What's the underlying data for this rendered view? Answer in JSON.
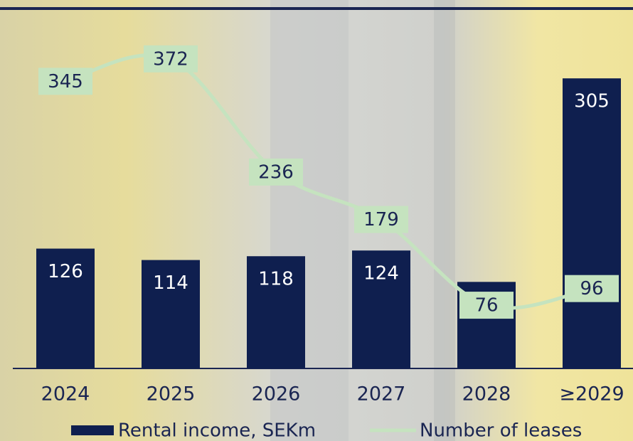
{
  "chart_data": {
    "type": "bar",
    "categories": [
      "2024",
      "2025",
      "2026",
      "2027",
      "2028",
      "≥2029"
    ],
    "series": [
      {
        "name": "Rental income, SEKm",
        "type": "bar",
        "color": "#0f1f4f",
        "values": [
          126,
          114,
          118,
          124,
          91,
          305
        ]
      },
      {
        "name": "Number of leases",
        "type": "line",
        "axis": "y2",
        "color": "#c5e3bf",
        "values": [
          345,
          372,
          236,
          179,
          76,
          96
        ]
      }
    ],
    "ylim": [
      0,
      350
    ],
    "y2lim": [
      0,
      400
    ],
    "legend": "bottom"
  }
}
